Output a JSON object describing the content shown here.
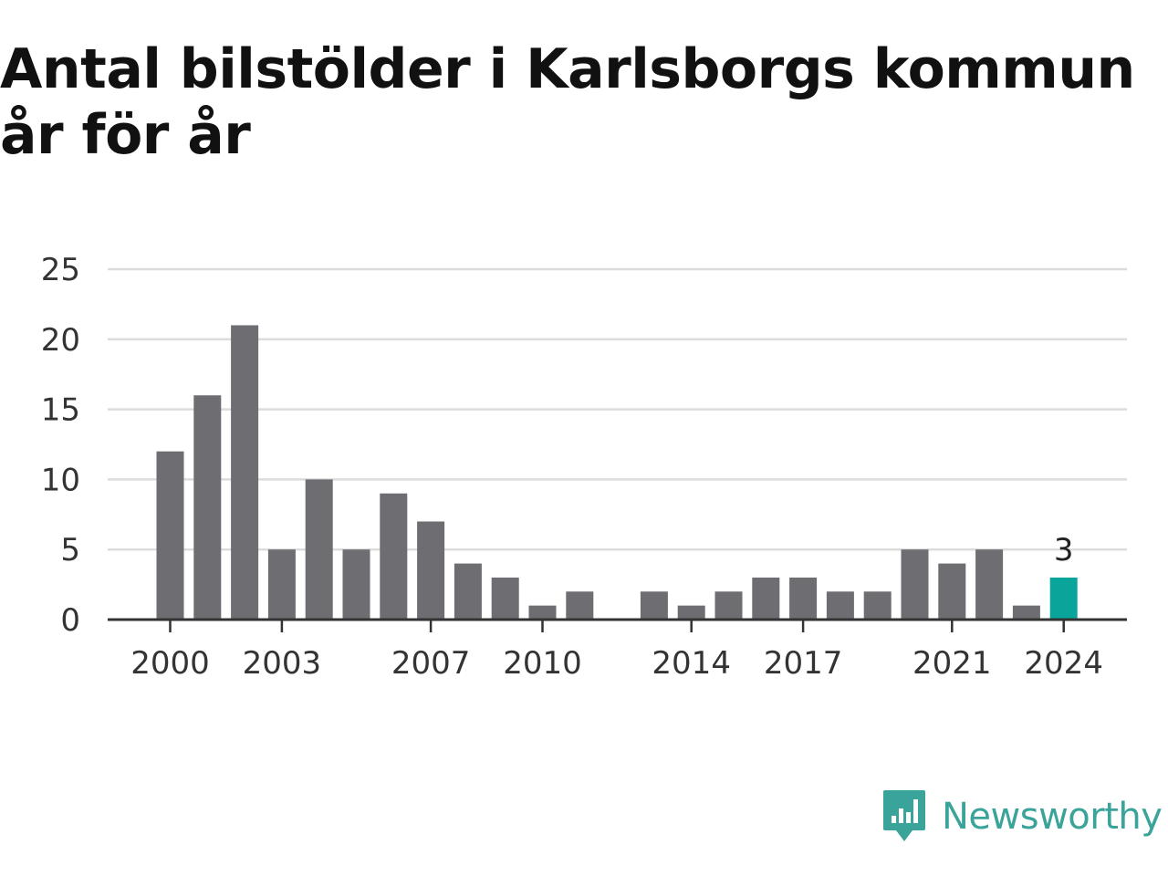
{
  "title": "Antal bilstölder i Karlsborgs kommun år för år",
  "brand": {
    "name": "Newsworthy",
    "icon": "newsworthy-logo-icon",
    "color": "#3aa39a"
  },
  "colors": {
    "bar": "#6e6d72",
    "highlight": "#0aa59a",
    "grid": "#dcdcdc",
    "axis": "#333333"
  },
  "chart_data": {
    "type": "bar",
    "title": "Antal bilstölder i Karlsborgs kommun år för år",
    "xlabel": "",
    "ylabel": "",
    "x": [
      2000,
      2001,
      2002,
      2003,
      2004,
      2005,
      2006,
      2007,
      2008,
      2009,
      2010,
      2011,
      2012,
      2013,
      2014,
      2015,
      2016,
      2017,
      2018,
      2019,
      2020,
      2021,
      2022,
      2023,
      2024
    ],
    "values": [
      12,
      16,
      21,
      5,
      10,
      5,
      9,
      7,
      4,
      3,
      1,
      2,
      0,
      2,
      1,
      2,
      3,
      3,
      2,
      2,
      5,
      4,
      5,
      1,
      3
    ],
    "x_tick_labels": [
      "2000",
      "2003",
      "2007",
      "2010",
      "2014",
      "2017",
      "2021",
      "2024"
    ],
    "y_ticks": [
      0,
      5,
      10,
      15,
      20,
      25
    ],
    "ylim": [
      0,
      25
    ],
    "grid": true,
    "legend": "none",
    "highlight": {
      "x": 2024,
      "value": 3,
      "label": "3"
    }
  }
}
